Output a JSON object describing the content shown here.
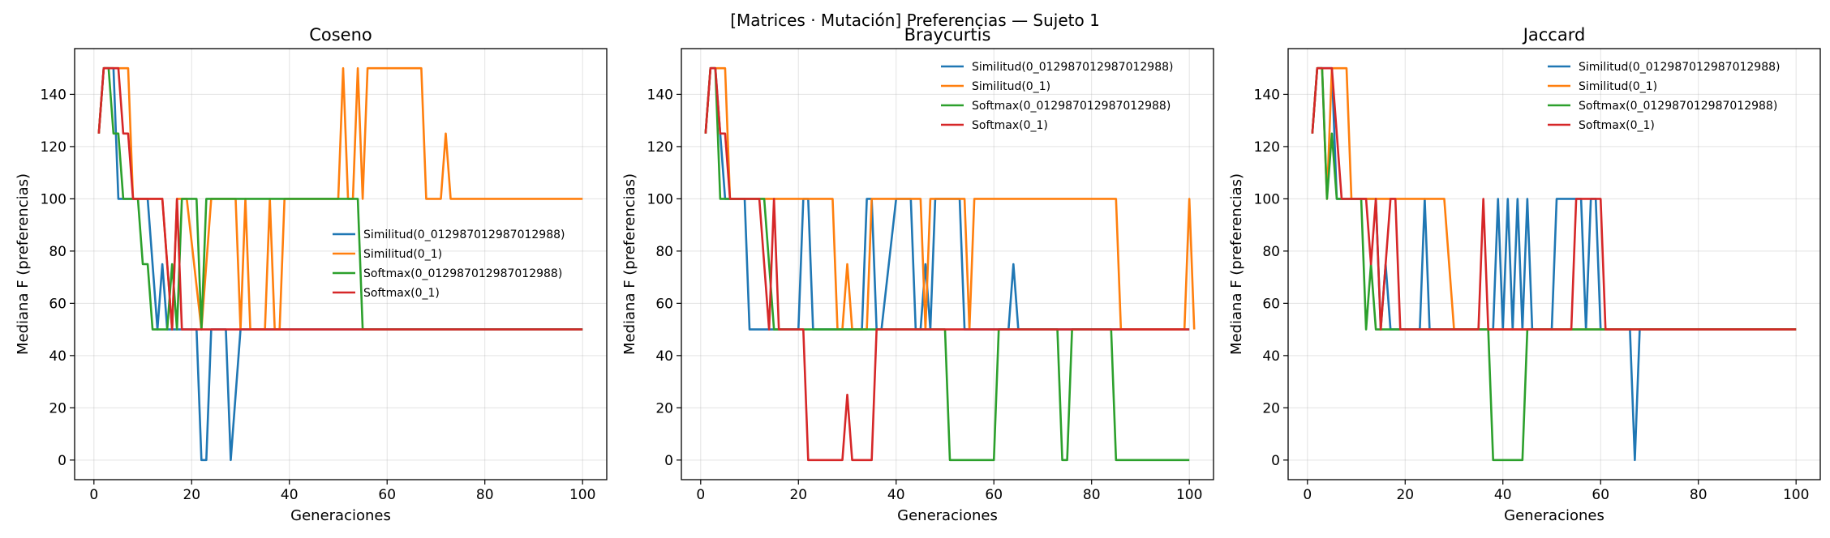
{
  "figure": {
    "suptitle": "[Matrices · Mutación] Preferencias — Sujeto 1"
  },
  "chart_data": [
    {
      "type": "line",
      "title": "Coseno",
      "xlabel": "Generaciones",
      "ylabel": "Mediana F (preferencias)",
      "xlim": [
        -3.95,
        104.95
      ],
      "ylim": [
        -7.5,
        157.5
      ],
      "xticks": [
        0,
        20,
        40,
        60,
        80,
        100
      ],
      "yticks": [
        0,
        20,
        40,
        60,
        80,
        100,
        120,
        140
      ],
      "grid": true,
      "legend": "center-right",
      "series": [
        {
          "name": "Similitud(0_012987012987012988)",
          "color": "#1f77b4",
          "points": [
            [
              1,
              125
            ],
            [
              2,
              150
            ],
            [
              4,
              150
            ],
            [
              5,
              100
            ],
            [
              11,
              100
            ],
            [
              12,
              75
            ],
            [
              13,
              50
            ],
            [
              14,
              75
            ],
            [
              15,
              50
            ],
            [
              21,
              50
            ],
            [
              22,
              0
            ],
            [
              23,
              0
            ],
            [
              24,
              50
            ],
            [
              27,
              50
            ],
            [
              28,
              0
            ],
            [
              30,
              50
            ],
            [
              100,
              50
            ]
          ]
        },
        {
          "name": "Similitud(0_1)",
          "color": "#ff7f0e",
          "points": [
            [
              1,
              125
            ],
            [
              2,
              150
            ],
            [
              7,
              150
            ],
            [
              8,
              100
            ],
            [
              14,
              100
            ],
            [
              16,
              50
            ],
            [
              17,
              100
            ],
            [
              19,
              100
            ],
            [
              22,
              50
            ],
            [
              24,
              100
            ],
            [
              29,
              100
            ],
            [
              30,
              50
            ],
            [
              31,
              100
            ],
            [
              32,
              50
            ],
            [
              35,
              50
            ],
            [
              36,
              100
            ],
            [
              37,
              50
            ],
            [
              38,
              50
            ],
            [
              39,
              100
            ],
            [
              50,
              100
            ],
            [
              51,
              150
            ],
            [
              52,
              100
            ],
            [
              53,
              100
            ],
            [
              54,
              150
            ],
            [
              55,
              100
            ],
            [
              56,
              150
            ],
            [
              67,
              150
            ],
            [
              68,
              100
            ],
            [
              71,
              100
            ],
            [
              72,
              125
            ],
            [
              73,
              100
            ],
            [
              100,
              100
            ]
          ]
        },
        {
          "name": "Softmax(0_012987012987012988)",
          "color": "#2ca02c",
          "points": [
            [
              1,
              125
            ],
            [
              2,
              150
            ],
            [
              3,
              150
            ],
            [
              4,
              125
            ],
            [
              5,
              125
            ],
            [
              6,
              100
            ],
            [
              9,
              100
            ],
            [
              10,
              75
            ],
            [
              11,
              75
            ],
            [
              12,
              50
            ],
            [
              15,
              50
            ],
            [
              16,
              75
            ],
            [
              17,
              50
            ],
            [
              18,
              100
            ],
            [
              21,
              100
            ],
            [
              22,
              50
            ],
            [
              23,
              100
            ],
            [
              54,
              100
            ],
            [
              55,
              50
            ],
            [
              100,
              50
            ]
          ]
        },
        {
          "name": "Softmax(0_1)",
          "color": "#d62728",
          "points": [
            [
              1,
              125
            ],
            [
              2,
              150
            ],
            [
              5,
              150
            ],
            [
              6,
              125
            ],
            [
              7,
              125
            ],
            [
              8,
              100
            ],
            [
              14,
              100
            ],
            [
              15,
              75
            ],
            [
              16,
              50
            ],
            [
              17,
              100
            ],
            [
              18,
              50
            ],
            [
              100,
              50
            ]
          ]
        }
      ]
    },
    {
      "type": "line",
      "title": "Braycurtis",
      "xlabel": "Generaciones",
      "ylabel": "Mediana F (preferencias)",
      "xlim": [
        -3.95,
        104.95
      ],
      "ylim": [
        -7.5,
        157.5
      ],
      "xticks": [
        0,
        20,
        40,
        60,
        80,
        100
      ],
      "yticks": [
        0,
        20,
        40,
        60,
        80,
        100,
        120,
        140
      ],
      "grid": true,
      "legend": "upper-right",
      "series": [
        {
          "name": "Similitud(0_012987012987012988)",
          "color": "#1f77b4",
          "points": [
            [
              1,
              125
            ],
            [
              2,
              150
            ],
            [
              3,
              150
            ],
            [
              4,
              125
            ],
            [
              5,
              100
            ],
            [
              9,
              100
            ],
            [
              10,
              50
            ],
            [
              11,
              50
            ],
            [
              20,
              50
            ],
            [
              21,
              100
            ],
            [
              22,
              100
            ],
            [
              23,
              50
            ],
            [
              33,
              50
            ],
            [
              34,
              100
            ],
            [
              35,
              100
            ],
            [
              36,
              50
            ],
            [
              37,
              50
            ],
            [
              40,
              100
            ],
            [
              41,
              100
            ],
            [
              43,
              100
            ],
            [
              44,
              50
            ],
            [
              45,
              50
            ],
            [
              46,
              75
            ],
            [
              47,
              50
            ],
            [
              48,
              100
            ],
            [
              53,
              100
            ],
            [
              54,
              50
            ],
            [
              63,
              50
            ],
            [
              64,
              75
            ],
            [
              65,
              50
            ],
            [
              100,
              50
            ]
          ]
        },
        {
          "name": "Similitud(0_1)",
          "color": "#ff7f0e",
          "points": [
            [
              1,
              125
            ],
            [
              2,
              150
            ],
            [
              5,
              150
            ],
            [
              6,
              100
            ],
            [
              27,
              100
            ],
            [
              28,
              50
            ],
            [
              29,
              50
            ],
            [
              30,
              75
            ],
            [
              31,
              50
            ],
            [
              34,
              50
            ],
            [
              35,
              100
            ],
            [
              45,
              100
            ],
            [
              46,
              50
            ],
            [
              47,
              100
            ],
            [
              54,
              100
            ],
            [
              55,
              50
            ],
            [
              56,
              100
            ],
            [
              85,
              100
            ],
            [
              86,
              50
            ],
            [
              99,
              50
            ],
            [
              100,
              100
            ],
            [
              101,
              50
            ]
          ]
        },
        {
          "name": "Softmax(0_012987012987012988)",
          "color": "#2ca02c",
          "points": [
            [
              1,
              125
            ],
            [
              2,
              150
            ],
            [
              3,
              150
            ],
            [
              4,
              100
            ],
            [
              13,
              100
            ],
            [
              14,
              75
            ],
            [
              15,
              50
            ],
            [
              25,
              50
            ],
            [
              26,
              50
            ],
            [
              27,
              50
            ],
            [
              36,
              50
            ],
            [
              37,
              50
            ],
            [
              50,
              50
            ],
            [
              51,
              0
            ],
            [
              60,
              0
            ],
            [
              61,
              50
            ],
            [
              62,
              50
            ],
            [
              73,
              50
            ],
            [
              74,
              0
            ],
            [
              75,
              0
            ],
            [
              76,
              50
            ],
            [
              80,
              50
            ],
            [
              84,
              50
            ],
            [
              85,
              0
            ],
            [
              100,
              0
            ]
          ]
        },
        {
          "name": "Softmax(0_1)",
          "color": "#d62728",
          "points": [
            [
              1,
              125
            ],
            [
              2,
              150
            ],
            [
              3,
              150
            ],
            [
              4,
              125
            ],
            [
              5,
              125
            ],
            [
              6,
              100
            ],
            [
              11,
              100
            ],
            [
              12,
              100
            ],
            [
              14,
              50
            ],
            [
              15,
              100
            ],
            [
              16,
              50
            ],
            [
              21,
              50
            ],
            [
              22,
              0
            ],
            [
              28,
              0
            ],
            [
              29,
              0
            ],
            [
              30,
              25
            ],
            [
              31,
              0
            ],
            [
              35,
              0
            ],
            [
              36,
              50
            ],
            [
              45,
              50
            ],
            [
              100,
              50
            ]
          ]
        }
      ]
    },
    {
      "type": "line",
      "title": "Jaccard",
      "xlabel": "Generaciones",
      "ylabel": "Mediana F (preferencias)",
      "xlim": [
        -3.95,
        104.95
      ],
      "ylim": [
        -7.5,
        157.5
      ],
      "xticks": [
        0,
        20,
        40,
        60,
        80,
        100
      ],
      "yticks": [
        0,
        20,
        40,
        60,
        80,
        100,
        120,
        140
      ],
      "grid": true,
      "legend": "upper-right",
      "series": [
        {
          "name": "Similitud(0_012987012987012988)",
          "color": "#1f77b4",
          "points": [
            [
              1,
              125
            ],
            [
              2,
              150
            ],
            [
              5,
              150
            ],
            [
              6,
              100
            ],
            [
              14,
              100
            ],
            [
              15,
              50
            ],
            [
              16,
              75
            ],
            [
              17,
              50
            ],
            [
              23,
              50
            ],
            [
              24,
              100
            ],
            [
              25,
              50
            ],
            [
              37,
              50
            ],
            [
              38,
              50
            ],
            [
              39,
              100
            ],
            [
              40,
              50
            ],
            [
              41,
              100
            ],
            [
              42,
              50
            ],
            [
              43,
              100
            ],
            [
              44,
              50
            ],
            [
              45,
              100
            ],
            [
              46,
              50
            ],
            [
              50,
              50
            ],
            [
              51,
              100
            ],
            [
              56,
              100
            ],
            [
              57,
              50
            ],
            [
              58,
              100
            ],
            [
              59,
              100
            ],
            [
              60,
              50
            ],
            [
              66,
              50
            ],
            [
              67,
              0
            ],
            [
              68,
              50
            ],
            [
              100,
              50
            ]
          ]
        },
        {
          "name": "Similitud(0_1)",
          "color": "#ff7f0e",
          "points": [
            [
              1,
              125
            ],
            [
              2,
              150
            ],
            [
              3,
              150
            ],
            [
              4,
              100
            ],
            [
              5,
              150
            ],
            [
              8,
              150
            ],
            [
              9,
              100
            ],
            [
              28,
              100
            ],
            [
              30,
              50
            ],
            [
              100,
              50
            ]
          ]
        },
        {
          "name": "Softmax(0_012987012987012988)",
          "color": "#2ca02c",
          "points": [
            [
              1,
              125
            ],
            [
              2,
              150
            ],
            [
              3,
              150
            ],
            [
              4,
              100
            ],
            [
              5,
              125
            ],
            [
              6,
              100
            ],
            [
              11,
              100
            ],
            [
              12,
              50
            ],
            [
              13,
              75
            ],
            [
              14,
              50
            ],
            [
              36,
              50
            ],
            [
              37,
              50
            ],
            [
              38,
              0
            ],
            [
              44,
              0
            ],
            [
              45,
              50
            ],
            [
              100,
              50
            ]
          ]
        },
        {
          "name": "Softmax(0_1)",
          "color": "#d62728",
          "points": [
            [
              1,
              125
            ],
            [
              2,
              150
            ],
            [
              5,
              150
            ],
            [
              6,
              125
            ],
            [
              7,
              100
            ],
            [
              12,
              100
            ],
            [
              13,
              75
            ],
            [
              14,
              100
            ],
            [
              15,
              50
            ],
            [
              17,
              100
            ],
            [
              18,
              100
            ],
            [
              19,
              50
            ],
            [
              35,
              50
            ],
            [
              36,
              100
            ],
            [
              37,
              50
            ],
            [
              54,
              50
            ],
            [
              55,
              100
            ],
            [
              60,
              100
            ],
            [
              61,
              50
            ],
            [
              100,
              50
            ]
          ]
        }
      ]
    }
  ]
}
